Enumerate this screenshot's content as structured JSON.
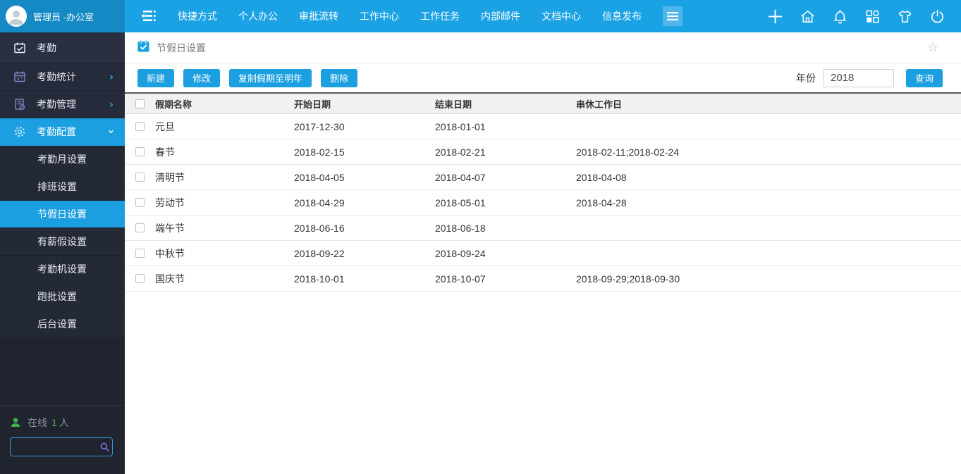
{
  "topbar": {
    "user": "管理员 -办公室",
    "nav": [
      "快捷方式",
      "个人办公",
      "审批流转",
      "工作中心",
      "工作任务",
      "内部邮件",
      "文档中心",
      "信息发布"
    ],
    "icons": [
      "plus-icon",
      "home-icon",
      "bell-icon",
      "apps-icon",
      "tshirt-icon",
      "power-icon"
    ]
  },
  "sidebar": {
    "items": [
      {
        "label": "考勤",
        "icon": "calendar-check-icon"
      },
      {
        "label": "考勤统计",
        "icon": "calendar-stats-icon",
        "chevron": "›"
      },
      {
        "label": "考勤管理",
        "icon": "file-clock-icon",
        "chevron": "›"
      },
      {
        "label": "考勤配置",
        "icon": "gear-icon",
        "chevron": "›",
        "active": true
      }
    ],
    "submenu": [
      "考勤月设置",
      "排班设置",
      "节假日设置",
      "有薪假设置",
      "考勤机设置",
      "跑批设置",
      "后台设置"
    ],
    "submenu_active_index": 2,
    "online": {
      "label": "在线",
      "count": "1",
      "suffix": "人"
    },
    "search_placeholder": ""
  },
  "page": {
    "title": "节假日设置",
    "favorite_icon": "☆"
  },
  "toolbar": {
    "buttons": [
      "新建",
      "修改",
      "复制假期至明年",
      "删除"
    ],
    "year_label": "年份",
    "year_value": "2018",
    "query_label": "查询"
  },
  "table": {
    "columns": [
      "假期名称",
      "开始日期",
      "结束日期",
      "串休工作日"
    ],
    "rows": [
      {
        "name": "元旦",
        "start": "2017-12-30",
        "end": "2018-01-01",
        "swap": ""
      },
      {
        "name": "春节",
        "start": "2018-02-15",
        "end": "2018-02-21",
        "swap": "2018-02-11;2018-02-24"
      },
      {
        "name": "清明节",
        "start": "2018-04-05",
        "end": "2018-04-07",
        "swap": "2018-04-08"
      },
      {
        "name": "劳动节",
        "start": "2018-04-29",
        "end": "2018-05-01",
        "swap": "2018-04-28"
      },
      {
        "name": "端午节",
        "start": "2018-06-16",
        "end": "2018-06-18",
        "swap": ""
      },
      {
        "name": "中秋节",
        "start": "2018-09-22",
        "end": "2018-09-24",
        "swap": ""
      },
      {
        "name": "国庆节",
        "start": "2018-10-01",
        "end": "2018-10-07",
        "swap": "2018-09-29;2018-09-30"
      }
    ]
  },
  "colors": {
    "topbar": "#1BA2E4",
    "brand_bg": "#1489C4",
    "accent": "#1B9FE0",
    "sidebar_bg": "#262B3B",
    "online_green": "#3CB54A",
    "table_header_bg": "#F1F1F1"
  }
}
